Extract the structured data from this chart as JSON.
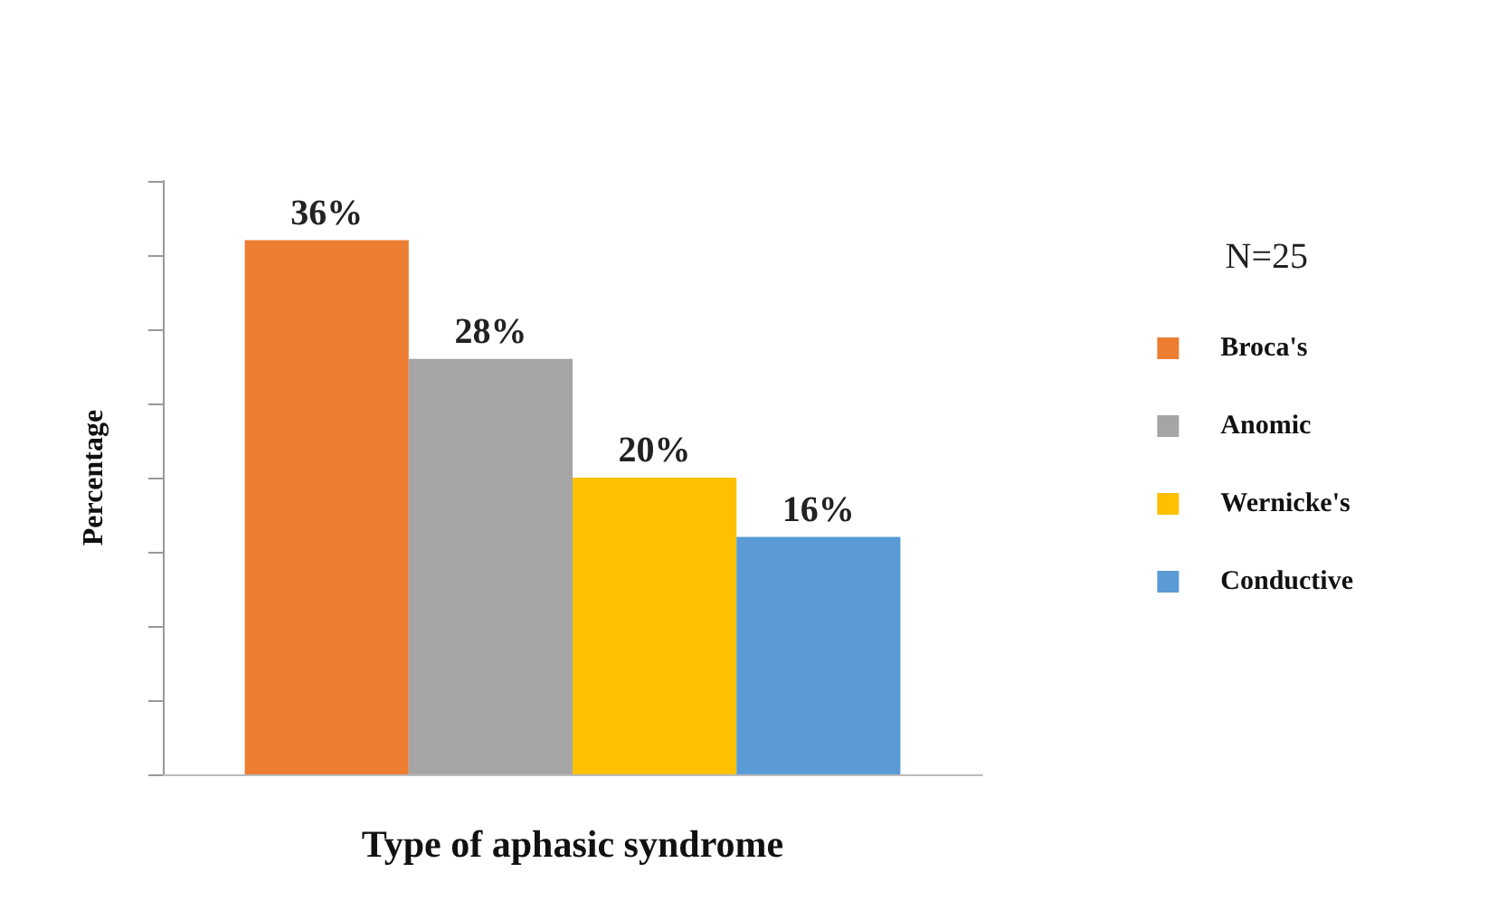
{
  "chart_data": {
    "type": "bar",
    "xlabel": "Type of aphasic syndrome",
    "ylabel": "Percentage",
    "legend_title": "N=25",
    "categories": [
      null
    ],
    "series": [
      {
        "name": "Broca's",
        "color": "#ed7d31",
        "values": [
          36
        ],
        "value_labels": [
          "36%"
        ]
      },
      {
        "name": "Anomic",
        "color": "#a5a5a5",
        "values": [
          28
        ],
        "value_labels": [
          "28%"
        ]
      },
      {
        "name": "Wernicke's",
        "color": "#ffc000",
        "values": [
          20
        ],
        "value_labels": [
          "20%"
        ]
      },
      {
        "name": "Conductive",
        "color": "#5b9bd5",
        "values": [
          16
        ],
        "value_labels": [
          "16%"
        ]
      }
    ],
    "ylim": [
      0,
      40
    ],
    "yticks": [
      {
        "value": 0,
        "label": null
      },
      {
        "value": 5,
        "label": null
      },
      {
        "value": 10,
        "label": null
      },
      {
        "value": 15,
        "label": null
      },
      {
        "value": 20,
        "label": null
      },
      {
        "value": 25,
        "label": null
      },
      {
        "value": 30,
        "label": null
      },
      {
        "value": 35,
        "label": null
      },
      {
        "value": 40,
        "label": null
      }
    ],
    "grid": false,
    "legend": "right"
  }
}
